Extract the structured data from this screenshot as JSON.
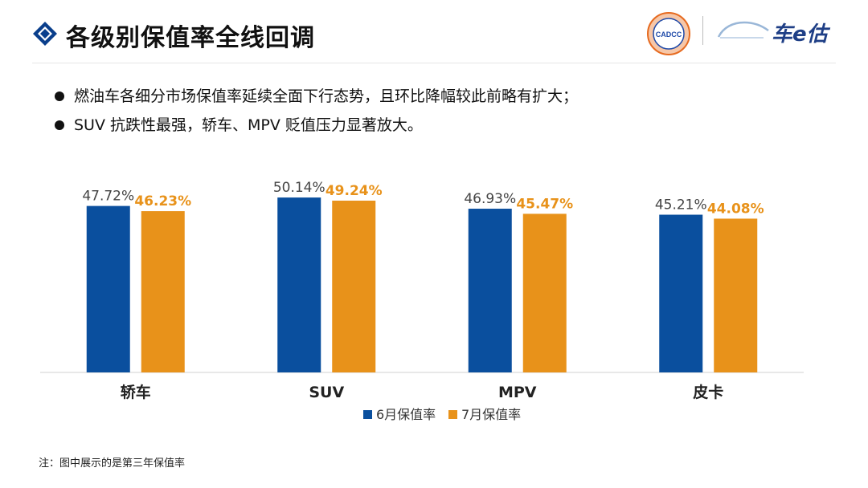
{
  "header": {
    "title": "各级别保值率全线回调",
    "icon": "diamond-bullet-icon",
    "logos": {
      "org_mark": "CADCC",
      "brand_name": "车e估"
    }
  },
  "bullets": [
    "燃油车各细分市场保值率延续全面下行态势，且环比降幅较此前略有扩大；",
    "SUV 抗跌性最强，轿车、MPV 贬值压力显著放大。"
  ],
  "chart_data": {
    "type": "bar",
    "categories": [
      "轿车",
      "SUV",
      "MPV",
      "皮卡"
    ],
    "series": [
      {
        "name": "6月保值率",
        "values": [
          47.72,
          50.14,
          46.93,
          45.21
        ],
        "labels": [
          "47.72%",
          "50.14%",
          "46.93%",
          "45.21%"
        ],
        "color": "#0a4f9e"
      },
      {
        "name": "7月保值率",
        "values": [
          46.23,
          49.24,
          45.47,
          44.08
        ],
        "labels": [
          "46.23%",
          "49.24%",
          "45.47%",
          "44.08%"
        ],
        "color": "#e8921a"
      }
    ],
    "ylim": [
      0,
      52
    ],
    "grid": false,
    "legend": "bottom",
    "colors": {
      "label_jun": "#444444",
      "label_jul": "#e8921a",
      "axis": "#d0d0d0"
    }
  },
  "footnote": "注：图中展示的是第三年保值率"
}
